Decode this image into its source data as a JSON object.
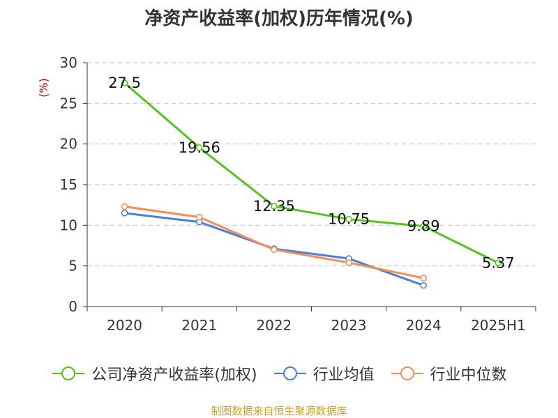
{
  "chart_data": {
    "type": "line",
    "title": "净资产收益率(加权)历年情况(%)",
    "ylabel": "(%)",
    "xlabel": "",
    "categories": [
      "2020",
      "2021",
      "2022",
      "2023",
      "2024",
      "2025H1"
    ],
    "ylim": [
      0,
      30
    ],
    "yticks": [
      0,
      5,
      10,
      15,
      20,
      25,
      30
    ],
    "grid": true,
    "legend_position": "bottom",
    "series": [
      {
        "name": "公司净资产收益率(加权)",
        "color": "#52c41a",
        "values": [
          27.5,
          19.56,
          12.35,
          10.75,
          9.89,
          5.37
        ],
        "labels": [
          "27.5",
          "19.56",
          "12.35",
          "10.75",
          "9.89",
          "5.37"
        ]
      },
      {
        "name": "行业均值",
        "color": "#4a7fd8",
        "values": [
          11.5,
          10.4,
          7.1,
          5.9,
          2.6,
          null
        ]
      },
      {
        "name": "行业中位数",
        "color": "#f58d57",
        "values": [
          12.3,
          11.0,
          7.0,
          5.4,
          3.5,
          null
        ]
      }
    ],
    "source": "制图数据来自恒生聚源数据库"
  }
}
